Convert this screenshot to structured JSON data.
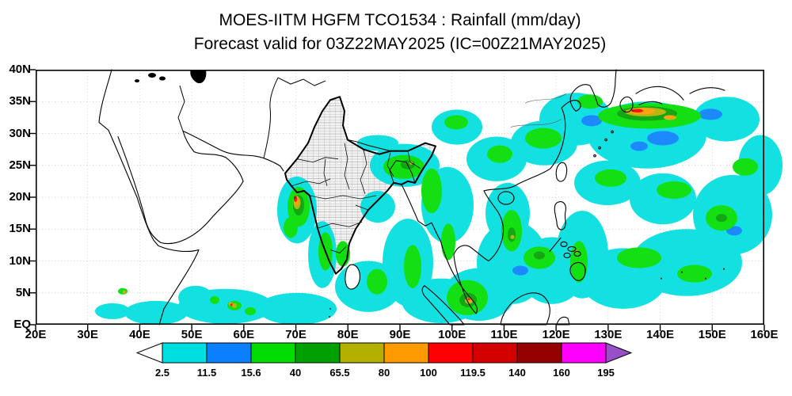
{
  "header": {
    "title": "MOES-IITM HGFM TCO1534 : Rainfall (mm/day)",
    "subtitle": "Forecast valid for 03Z22MAY2025 (IC=00Z21MAY2025)"
  },
  "chart_data": {
    "type": "heatmap",
    "title": "MOES-IITM HGFM TCO1534 : Rainfall (mm/day)",
    "subtitle": "Forecast valid for 03Z22MAY2025 (IC=00Z21MAY2025)",
    "model": "MOES-IITM HGFM TCO1534",
    "variable": "Rainfall",
    "units": "mm/day",
    "valid_time": "03Z22MAY2025",
    "initial_condition": "00Z21MAY2025",
    "x_axis": {
      "range_deg_east": [
        20,
        160
      ],
      "ticks": [
        "20E",
        "30E",
        "40E",
        "50E",
        "60E",
        "70E",
        "80E",
        "90E",
        "100E",
        "110E",
        "120E",
        "130E",
        "140E",
        "150E",
        "160E"
      ]
    },
    "y_axis": {
      "range_deg_north": [
        0,
        40
      ],
      "ticks_top_to_bottom": [
        "40N",
        "35N",
        "30N",
        "25N",
        "20N",
        "15N",
        "10N",
        "5N",
        "EQ"
      ]
    },
    "palette": {
      "white": "#ffffff",
      "cyan": "#00dfdf",
      "blue": "#0a80ff",
      "green": "#00dd00",
      "darkgreen": "#00a000",
      "olive": "#b4b000",
      "orange": "#ff9b00",
      "red": "#ff0000",
      "darkred": "#d40000",
      "maroon": "#950000",
      "magenta": "#ff00ff",
      "purple": "#9850c8"
    },
    "colorbar": {
      "levels": [
        "2.5",
        "11.5",
        "15.6",
        "40",
        "65.5",
        "80",
        "100",
        "119.5",
        "140",
        "160",
        "195"
      ],
      "order": [
        "white",
        "cyan",
        "blue",
        "green",
        "darkgreen",
        "olive",
        "orange",
        "red",
        "darkred",
        "maroon",
        "magenta",
        "purple"
      ]
    },
    "notable_features": [
      "Heavy rain cell (exceeding 100-140 mm/day at its core) in the eastern Arabian Sea off the Gujarat-Maharashtra coast near 70E, 18N",
      "Widespread light to moderate rain (2.5-40 mm/day) over the Bay of Bengal, South China Sea and tropical West Pacific",
      "Intense east-west rainband (80-160 mm/day) near 32N stretching from Korea/East China Sea across southern Japan",
      "Scattered convective cells over the equatorial Arabian Sea, Kerala coast, Northeast India, Indochina and Sumatra"
    ]
  }
}
